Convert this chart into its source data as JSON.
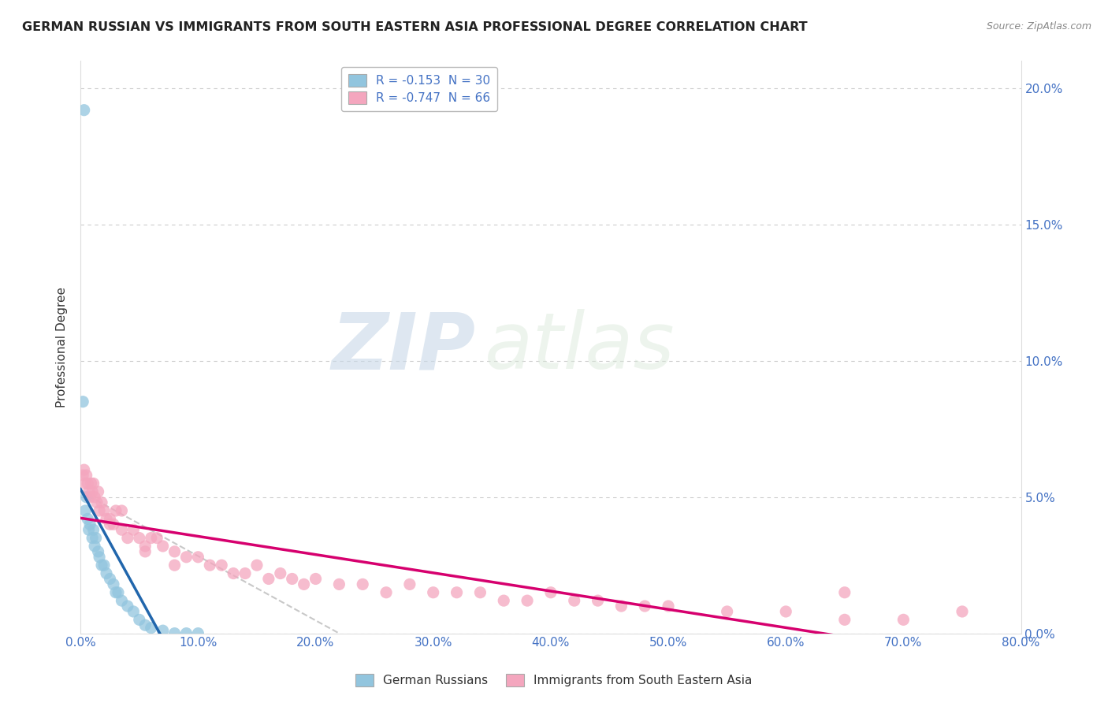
{
  "title": "GERMAN RUSSIAN VS IMMIGRANTS FROM SOUTH EASTERN ASIA PROFESSIONAL DEGREE CORRELATION CHART",
  "source": "Source: ZipAtlas.com",
  "ylabel": "Professional Degree",
  "ytick_vals": [
    0.0,
    5.0,
    10.0,
    15.0,
    20.0
  ],
  "xtick_vals": [
    0.0,
    10.0,
    20.0,
    30.0,
    40.0,
    50.0,
    60.0,
    70.0,
    80.0
  ],
  "legend_blue": "R = -0.153  N = 30",
  "legend_pink": "R = -0.747  N = 66",
  "blue_color": "#92c5de",
  "pink_color": "#f4a6be",
  "blue_line_color": "#2166ac",
  "pink_line_color": "#d6006e",
  "gray_line_color": "#bbbbbb",
  "blue_scatter_x": [
    0.3,
    0.4,
    0.5,
    0.6,
    0.7,
    0.8,
    1.0,
    1.1,
    1.2,
    1.3,
    1.5,
    1.6,
    1.8,
    2.0,
    2.2,
    2.5,
    2.8,
    3.0,
    3.2,
    3.5,
    4.0,
    4.5,
    5.0,
    5.5,
    6.0,
    7.0,
    8.0,
    9.0,
    10.0,
    0.2
  ],
  "blue_scatter_y": [
    19.2,
    4.5,
    5.0,
    4.2,
    3.8,
    4.0,
    3.5,
    3.8,
    3.2,
    3.5,
    3.0,
    2.8,
    2.5,
    2.5,
    2.2,
    2.0,
    1.8,
    1.5,
    1.5,
    1.2,
    1.0,
    0.8,
    0.5,
    0.3,
    0.2,
    0.1,
    0.0,
    0.0,
    0.0,
    8.5
  ],
  "pink_scatter_x": [
    0.2,
    0.3,
    0.4,
    0.5,
    0.6,
    0.7,
    0.8,
    0.9,
    1.0,
    1.1,
    1.2,
    1.4,
    1.5,
    1.6,
    1.8,
    2.0,
    2.2,
    2.5,
    2.8,
    3.0,
    3.5,
    4.0,
    4.5,
    5.0,
    5.5,
    6.0,
    7.0,
    8.0,
    9.0,
    10.0,
    11.0,
    12.0,
    13.0,
    14.0,
    15.0,
    16.0,
    17.0,
    18.0,
    19.0,
    20.0,
    22.0,
    24.0,
    26.0,
    28.0,
    30.0,
    32.0,
    34.0,
    36.0,
    38.0,
    40.0,
    42.0,
    44.0,
    46.0,
    48.0,
    50.0,
    55.0,
    60.0,
    65.0,
    70.0,
    75.0,
    2.5,
    3.5,
    5.5,
    6.5,
    8.0,
    65.0
  ],
  "pink_scatter_y": [
    5.8,
    6.0,
    5.5,
    5.8,
    5.5,
    5.2,
    5.0,
    5.5,
    5.2,
    5.5,
    5.0,
    4.8,
    5.2,
    4.5,
    4.8,
    4.5,
    4.2,
    4.0,
    4.0,
    4.5,
    3.8,
    3.5,
    3.8,
    3.5,
    3.2,
    3.5,
    3.2,
    3.0,
    2.8,
    2.8,
    2.5,
    2.5,
    2.2,
    2.2,
    2.5,
    2.0,
    2.2,
    2.0,
    1.8,
    2.0,
    1.8,
    1.8,
    1.5,
    1.8,
    1.5,
    1.5,
    1.5,
    1.2,
    1.2,
    1.5,
    1.2,
    1.2,
    1.0,
    1.0,
    1.0,
    0.8,
    0.8,
    0.5,
    0.5,
    0.8,
    4.2,
    4.5,
    3.0,
    3.5,
    2.5,
    1.5
  ],
  "watermark_zip": "ZIP",
  "watermark_atlas": "atlas",
  "background_color": "#ffffff",
  "grid_color": "#cccccc",
  "tick_color": "#4472c4",
  "label_color": "#333333"
}
